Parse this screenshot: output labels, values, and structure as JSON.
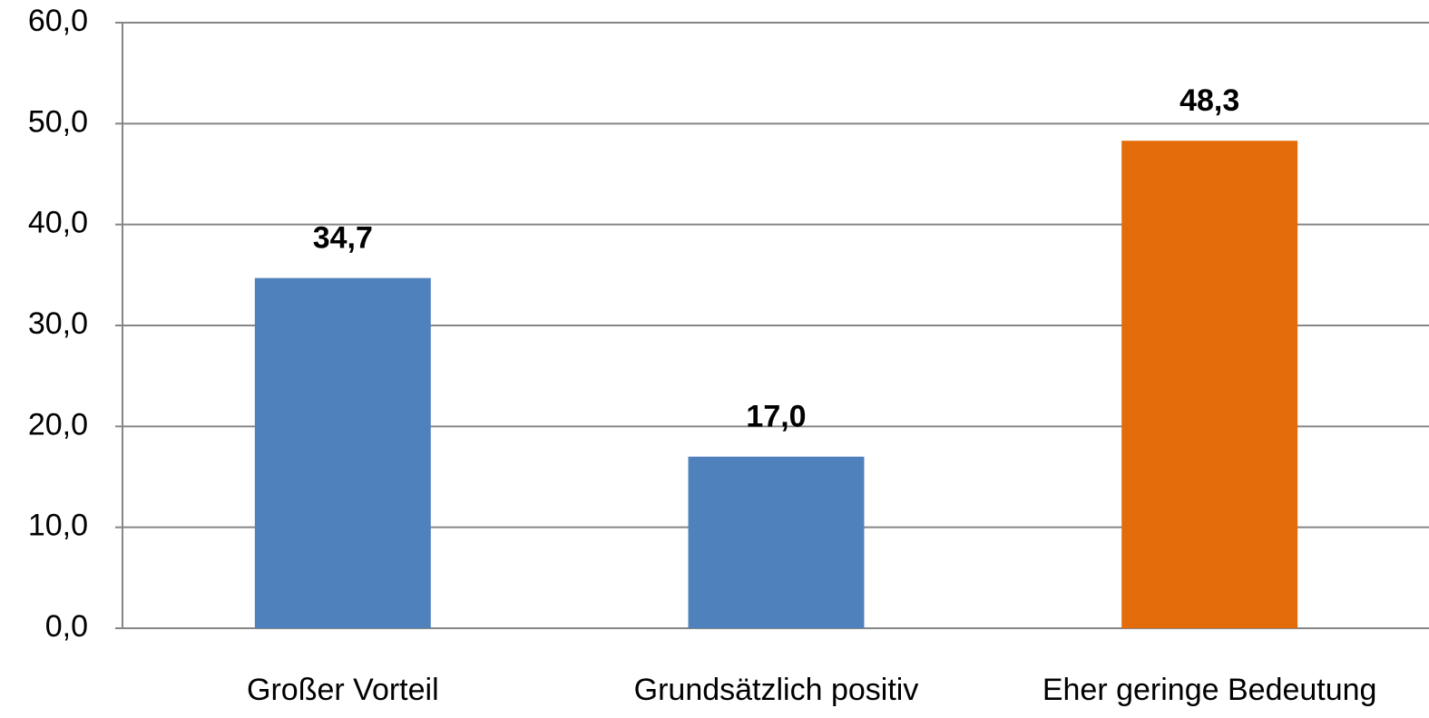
{
  "chart_data": {
    "type": "bar",
    "categories": [
      "Großer Vorteil",
      "Grundsätzlich positiv",
      "Eher geringe Bedeutung"
    ],
    "values": [
      34.7,
      17.0,
      48.3
    ],
    "value_labels": [
      "34,7",
      "17,0",
      "48,3"
    ],
    "colors": [
      "#4f81bd",
      "#4f81bd",
      "#e36c0a"
    ],
    "ylim": [
      0,
      60
    ],
    "yticks": [
      {
        "value": 0,
        "label": "0,0"
      },
      {
        "value": 10,
        "label": "10,0"
      },
      {
        "value": 20,
        "label": "20,0"
      },
      {
        "value": 30,
        "label": "30,0"
      },
      {
        "value": 40,
        "label": "40,0"
      },
      {
        "value": 50,
        "label": "50,0"
      },
      {
        "value": 60,
        "label": "60,0"
      }
    ],
    "grid": true
  }
}
